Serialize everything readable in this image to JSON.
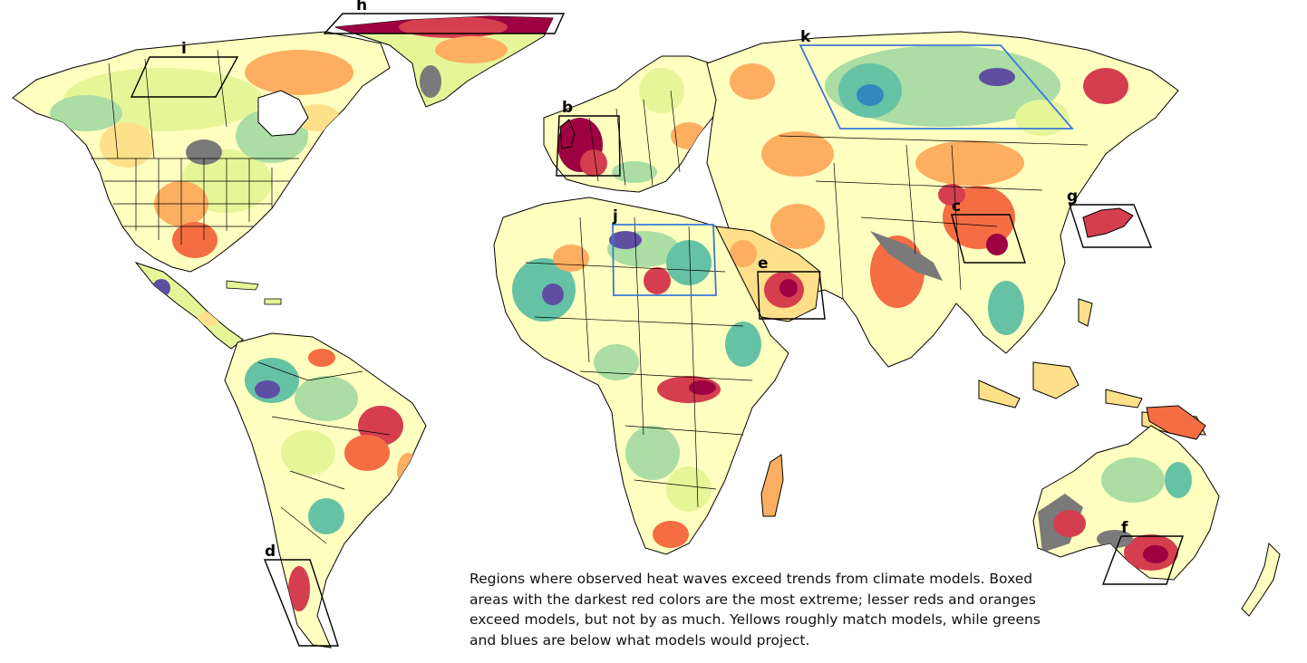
{
  "caption": "Regions where observed heat waves exceed trends from climate models. Boxed areas with the darkest red colors are the most extreme; lesser reds and oranges exceed models, but not by as much. Yellows roughly match models, while greens and blues are below what models would project.",
  "palette": {
    "far_exceed": "#9e0142",
    "exceed_strong": "#d53e4f",
    "exceed": "#f46d43",
    "exceed_mild": "#fdae61",
    "match": "#fee08b",
    "match_light": "#ffffbf",
    "below_mild": "#e6f598",
    "below": "#abdda4",
    "below_more": "#66c2a5",
    "below_strong": "#3288bd",
    "far_below": "#5e4fa2",
    "no_data": "#7a7a7a",
    "box_black": "#000000",
    "box_blue": "#3a78d8"
  },
  "boxes": [
    {
      "id": "h",
      "label": "h",
      "color": "black"
    },
    {
      "id": "i",
      "label": "i",
      "color": "black"
    },
    {
      "id": "b",
      "label": "b",
      "color": "black"
    },
    {
      "id": "k",
      "label": "k",
      "color": "blue"
    },
    {
      "id": "g",
      "label": "g",
      "color": "black"
    },
    {
      "id": "c",
      "label": "c",
      "color": "black"
    },
    {
      "id": "j",
      "label": "j",
      "color": "blue"
    },
    {
      "id": "e",
      "label": "e",
      "color": "black"
    },
    {
      "id": "d",
      "label": "d",
      "color": "black"
    },
    {
      "id": "f",
      "label": "f",
      "color": "black"
    }
  ]
}
